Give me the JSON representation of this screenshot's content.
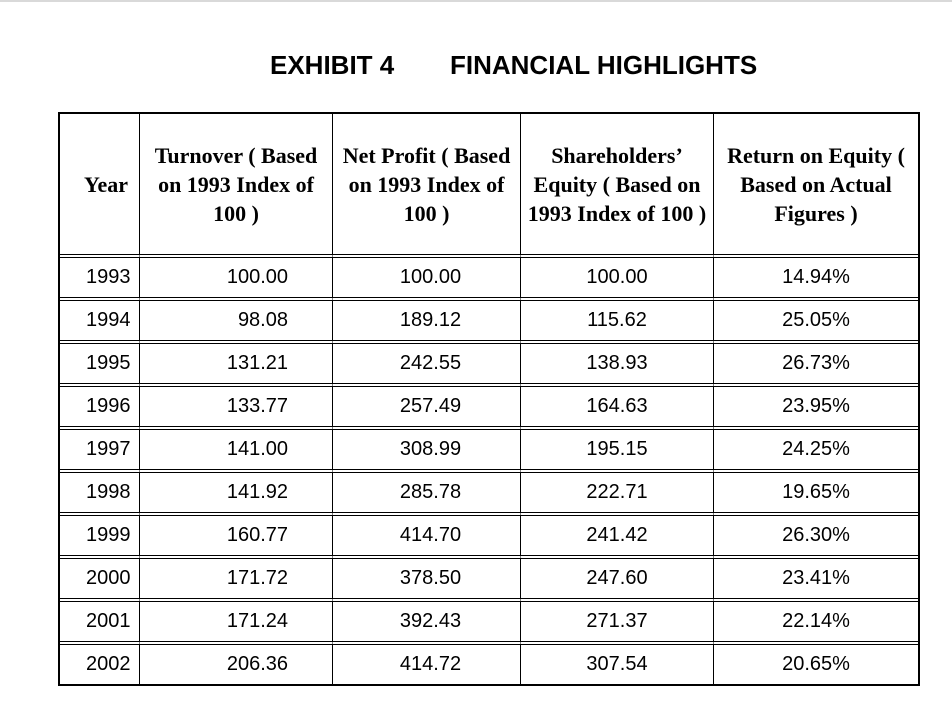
{
  "title": {
    "exhibit": "EXHIBIT 4",
    "heading": "FINANCIAL HIGHLIGHTS"
  },
  "table": {
    "headers": {
      "year": "Year",
      "turnover": "Turnover ( Based on 1993 Index of 100 )",
      "net_profit": "Net Profit ( Based on 1993 Index of 100 )",
      "equity": "Shareholders’ Equity ( Based on 1993 Index of 100 )",
      "roe": "Return on Equity ( Based on Actual Figures )"
    },
    "rows": [
      {
        "year": "1993",
        "turnover": "100.00",
        "net_profit": "100.00",
        "equity": "100.00",
        "roe": "14.94%"
      },
      {
        "year": "1994",
        "turnover": "98.08",
        "net_profit": "189.12",
        "equity": "115.62",
        "roe": "25.05%"
      },
      {
        "year": "1995",
        "turnover": "131.21",
        "net_profit": "242.55",
        "equity": "138.93",
        "roe": "26.73%"
      },
      {
        "year": "1996",
        "turnover": "133.77",
        "net_profit": "257.49",
        "equity": "164.63",
        "roe": "23.95%"
      },
      {
        "year": "1997",
        "turnover": "141.00",
        "net_profit": "308.99",
        "equity": "195.15",
        "roe": "24.25%"
      },
      {
        "year": "1998",
        "turnover": "141.92",
        "net_profit": "285.78",
        "equity": "222.71",
        "roe": "19.65%"
      },
      {
        "year": "1999",
        "turnover": "160.77",
        "net_profit": "414.70",
        "equity": "241.42",
        "roe": "26.30%"
      },
      {
        "year": "2000",
        "turnover": "171.72",
        "net_profit": "378.50",
        "equity": "247.60",
        "roe": "23.41%"
      },
      {
        "year": "2001",
        "turnover": "171.24",
        "net_profit": "392.43",
        "equity": "271.37",
        "roe": "22.14%"
      },
      {
        "year": "2002",
        "turnover": "206.36",
        "net_profit": "414.72",
        "equity": "307.54",
        "roe": "20.65%"
      }
    ]
  }
}
